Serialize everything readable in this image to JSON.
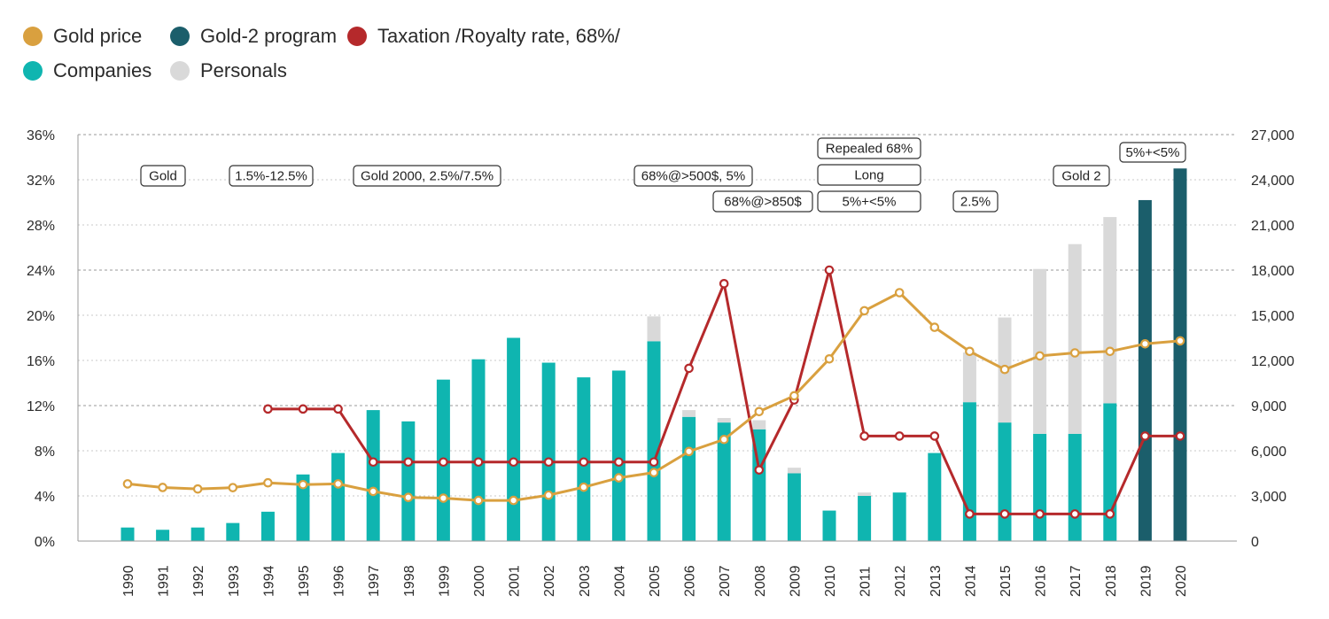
{
  "legend": [
    {
      "label": "Gold price",
      "color": "#d9a03f"
    },
    {
      "label": "Gold-2 program",
      "color": "#1b5e6b"
    },
    {
      "label": "Taxation /Royalty rate, 68%/",
      "color": "#b5292b"
    },
    {
      "label": "Companies",
      "color": "#0fb5b0"
    },
    {
      "label": "Personals",
      "color": "#d9d9d9"
    }
  ],
  "chart_data": {
    "type": "bar",
    "categories": [
      "1990",
      "1991",
      "1992",
      "1993",
      "1994",
      "1995",
      "1996",
      "1997",
      "1998",
      "1999",
      "2000",
      "2001",
      "2002",
      "2003",
      "2004",
      "2005",
      "2006",
      "2007",
      "2008",
      "2009",
      "2010",
      "2011",
      "2012",
      "2013",
      "2014",
      "2015",
      "2016",
      "2017",
      "2018",
      "2019",
      "2020"
    ],
    "left_axis": {
      "ticks": [
        "0%",
        "4%",
        "8%",
        "12%",
        "16%",
        "20%",
        "24%",
        "28%",
        "32%",
        "36%"
      ],
      "ylim": [
        0,
        36
      ]
    },
    "right_axis": {
      "ticks": [
        "0",
        "3,000",
        "6,000",
        "9,000",
        "12,000",
        "15,000",
        "18,000",
        "21,000",
        "24,000",
        "27,000"
      ],
      "ylim": [
        0,
        27000
      ]
    },
    "series": [
      {
        "name": "Companies",
        "type": "bar",
        "axis": "left",
        "color": "#0fb5b0",
        "values": [
          1.2,
          1.0,
          1.2,
          1.6,
          2.6,
          5.9,
          7.8,
          11.6,
          10.6,
          14.3,
          16.1,
          18.0,
          15.8,
          14.5,
          15.1,
          17.7,
          11.0,
          10.5,
          9.9,
          6.0,
          2.7,
          4.0,
          4.3,
          7.8,
          12.3,
          10.5,
          9.5,
          9.5,
          12.2,
          0,
          0
        ]
      },
      {
        "name": "Personals",
        "type": "bar_stacked",
        "axis": "left",
        "color": "#d9d9d9",
        "values": [
          0,
          0,
          0,
          0,
          0,
          0,
          0,
          0,
          0,
          0,
          0,
          0,
          0,
          0,
          0,
          2.2,
          0.6,
          0.4,
          0.8,
          0.5,
          0,
          0.3,
          0,
          0,
          4.4,
          9.3,
          14.6,
          16.8,
          16.5,
          0,
          0
        ]
      },
      {
        "name": "Gold-2 program",
        "type": "bar",
        "axis": "left",
        "color": "#1b5e6b",
        "values": [
          0,
          0,
          0,
          0,
          0,
          0,
          0,
          0,
          0,
          0,
          0,
          0,
          0,
          0,
          0,
          0,
          0,
          0,
          0,
          0,
          0,
          0,
          0,
          0,
          0,
          0,
          0,
          0,
          0,
          30.2,
          33.0
        ]
      },
      {
        "name": "Taxation /Royalty rate, 68%/",
        "type": "line",
        "axis": "left",
        "color": "#b5292b",
        "values": [
          null,
          null,
          null,
          null,
          11.7,
          11.7,
          11.7,
          7.0,
          7.0,
          7.0,
          7.0,
          7.0,
          7.0,
          7.0,
          7.0,
          7.0,
          15.3,
          22.8,
          6.3,
          12.5,
          24.0,
          9.3,
          9.3,
          9.3,
          2.4,
          2.4,
          2.4,
          2.4,
          2.4,
          9.3,
          9.3
        ]
      },
      {
        "name": "Gold price",
        "type": "line",
        "axis": "right",
        "color": "#d9a03f",
        "values": [
          3800,
          3560,
          3460,
          3550,
          3870,
          3750,
          3800,
          3300,
          2900,
          2850,
          2700,
          2700,
          3050,
          3580,
          4200,
          4550,
          5950,
          6750,
          8600,
          9650,
          12100,
          15300,
          16500,
          14200,
          12600,
          11400,
          12300,
          12500,
          12600,
          13100,
          13300
        ]
      }
    ],
    "annotations": [
      "Gold",
      "1.5%-12.5%",
      "Gold 2000, 2.5%/7.5%",
      "68%@>500$, 5%",
      "68%@>850$",
      "Repealed 68%",
      "Long",
      "5%+<5%",
      "2.5%",
      "Gold 2",
      "5%+<5%"
    ]
  }
}
